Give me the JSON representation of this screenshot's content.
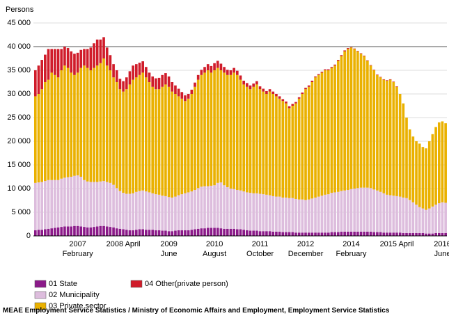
{
  "chart_data": {
    "type": "stacked_bar",
    "y_label": "Persons",
    "source": "MEAE Employment Service Statistics / Ministry of Economic Affairs and Employment, Employment Service Statistics",
    "categories": [
      null,
      null,
      null,
      null,
      null,
      null,
      null,
      null,
      null,
      null,
      null,
      null,
      null,
      "2007\nFebruary",
      null,
      null,
      null,
      null,
      null,
      null,
      null,
      null,
      null,
      null,
      null,
      null,
      null,
      "2008 April",
      null,
      null,
      null,
      null,
      null,
      null,
      null,
      null,
      null,
      null,
      null,
      null,
      null,
      "2009\nJune",
      null,
      null,
      null,
      null,
      null,
      null,
      null,
      null,
      null,
      null,
      null,
      null,
      null,
      "2010\nAugust",
      null,
      null,
      null,
      null,
      null,
      null,
      null,
      null,
      null,
      null,
      null,
      null,
      null,
      "2011\nOctober",
      null,
      null,
      null,
      null,
      null,
      null,
      null,
      null,
      null,
      null,
      null,
      null,
      null,
      "2012\nDecember",
      null,
      null,
      null,
      null,
      null,
      null,
      null,
      null,
      null,
      null,
      null,
      null,
      null,
      "2014\nFebruary",
      null,
      null,
      null,
      null,
      null,
      null,
      null,
      null,
      null,
      null,
      null,
      null,
      null,
      "2015 April",
      null,
      null,
      null,
      null,
      null,
      null,
      null,
      null,
      null,
      null,
      null,
      null,
      null,
      "2016\nJune",
      null
    ],
    "series": [
      {
        "name": "01 State",
        "color": "#8b1a89",
        "values": [
          1200,
          1300,
          1300,
          1400,
          1500,
          1600,
          1700,
          1800,
          1900,
          2000,
          2000,
          2000,
          2100,
          2100,
          2000,
          1900,
          1800,
          1800,
          1900,
          2000,
          2100,
          2100,
          2000,
          1900,
          1800,
          1600,
          1500,
          1400,
          1300,
          1200,
          1200,
          1300,
          1400,
          1400,
          1300,
          1300,
          1300,
          1200,
          1200,
          1100,
          1100,
          1000,
          1000,
          1100,
          1200,
          1200,
          1200,
          1200,
          1300,
          1400,
          1500,
          1600,
          1600,
          1700,
          1700,
          1700,
          1700,
          1600,
          1500,
          1500,
          1500,
          1500,
          1400,
          1400,
          1300,
          1200,
          1100,
          1100,
          1100,
          1000,
          1000,
          1000,
          1000,
          900,
          900,
          900,
          800,
          800,
          800,
          800,
          700,
          700,
          700,
          700,
          700,
          700,
          700,
          700,
          700,
          700,
          700,
          800,
          800,
          800,
          900,
          900,
          900,
          900,
          900,
          900,
          900,
          900,
          900,
          900,
          800,
          800,
          800,
          700,
          700,
          700,
          700,
          700,
          700,
          600,
          600,
          600,
          600,
          600,
          600,
          600,
          500,
          500,
          500,
          600,
          600,
          600,
          600
        ]
      },
      {
        "name": "02 Municipality",
        "color": "#ddbddd",
        "values": [
          10000,
          10000,
          10100,
          10200,
          10300,
          10200,
          10100,
          10000,
          10200,
          10300,
          10400,
          10500,
          10600,
          10700,
          10500,
          9900,
          9700,
          9600,
          9500,
          9400,
          9400,
          9500,
          9400,
          9300,
          9000,
          8500,
          8000,
          7700,
          7600,
          7700,
          7800,
          8000,
          8100,
          8200,
          8100,
          7900,
          7700,
          7600,
          7500,
          7400,
          7300,
          7200,
          7100,
          7200,
          7400,
          7600,
          7800,
          8000,
          8100,
          8300,
          8600,
          8800,
          8900,
          8800,
          8900,
          9000,
          9500,
          9700,
          9200,
          8800,
          8500,
          8400,
          8300,
          8200,
          8100,
          8000,
          8000,
          7900,
          7900,
          7900,
          7800,
          7700,
          7600,
          7500,
          7400,
          7400,
          7300,
          7300,
          7200,
          7200,
          7100,
          7000,
          7000,
          6900,
          7000,
          7200,
          7400,
          7600,
          7800,
          8000,
          8100,
          8300,
          8400,
          8500,
          8600,
          8700,
          8800,
          9000,
          9100,
          9200,
          9300,
          9300,
          9300,
          9200,
          9000,
          8800,
          8500,
          8300,
          8000,
          7900,
          7800,
          7700,
          7600,
          7500,
          7400,
          7000,
          6500,
          6000,
          5500,
          5200,
          5000,
          5300,
          5700,
          6000,
          6300,
          6500,
          6400
        ]
      },
      {
        "name": "03 Private sector",
        "color": "#eab100",
        "values": [
          18300,
          18700,
          19600,
          20900,
          21200,
          22700,
          22200,
          21700,
          22900,
          23700,
          23100,
          22000,
          21300,
          21700,
          23000,
          24200,
          24000,
          23600,
          24100,
          24600,
          25000,
          25900,
          24600,
          23800,
          22700,
          22400,
          21500,
          21400,
          22100,
          23100,
          24000,
          24200,
          24500,
          24900,
          24100,
          23300,
          22500,
          22200,
          22300,
          23000,
          23600,
          23300,
          22400,
          21700,
          20900,
          20200,
          19500,
          19800,
          20600,
          21800,
          22900,
          23600,
          24000,
          24500,
          23900,
          24300,
          24300,
          23700,
          23800,
          23700,
          24000,
          24600,
          24300,
          23400,
          22600,
          22300,
          21900,
          22500,
          23000,
          22100,
          21700,
          21300,
          21900,
          21600,
          21200,
          20700,
          20400,
          19900,
          19000,
          19500,
          20200,
          21300,
          22300,
          23400,
          23800,
          24600,
          25400,
          25700,
          26000,
          26300,
          26200,
          26400,
          26800,
          27700,
          28500,
          29400,
          29800,
          29900,
          29500,
          28900,
          28300,
          27800,
          26800,
          25900,
          25200,
          24400,
          24200,
          24000,
          24100,
          24400,
          24000,
          23100,
          21700,
          19900,
          17000,
          14900,
          13900,
          13400,
          13400,
          13000,
          13000,
          14200,
          15300,
          16400,
          17100,
          17100,
          16800
        ]
      },
      {
        "name": "04 Other(private person)",
        "color": "#d01c2a",
        "values": [
          5500,
          6000,
          6200,
          5800,
          6500,
          5000,
          5500,
          6000,
          4500,
          4000,
          4200,
          4500,
          4500,
          4200,
          3800,
          3500,
          4000,
          4800,
          5200,
          5500,
          5000,
          4500,
          3800,
          3200,
          2800,
          2500,
          2200,
          2200,
          2500,
          2800,
          3000,
          2800,
          2600,
          2400,
          2200,
          2000,
          2200,
          2300,
          2400,
          2500,
          2400,
          2200,
          2000,
          1800,
          1600,
          1400,
          1200,
          1000,
          900,
          900,
          1000,
          1100,
          1200,
          1300,
          1400,
          1500,
          1500,
          1400,
          1200,
          1100,
          1000,
          1000,
          900,
          900,
          800,
          800,
          800,
          700,
          700,
          600,
          600,
          600,
          500,
          500,
          500,
          500,
          400,
          400,
          400,
          400,
          300,
          300,
          300,
          300,
          300,
          300,
          200,
          200,
          200,
          200,
          200,
          200,
          200,
          200,
          200,
          200,
          200,
          100,
          100,
          100,
          100,
          100,
          100,
          100,
          100,
          100,
          100,
          100,
          100,
          100,
          100,
          100,
          0,
          0,
          0,
          0,
          0,
          0,
          0,
          0,
          0,
          0,
          0,
          0,
          0,
          0,
          0
        ]
      }
    ],
    "ylim": [
      0,
      45000
    ],
    "yticks": [
      0,
      {
        "value": 5000,
        "label": "5 000"
      },
      {
        "value": 10000,
        "label": "10 000"
      },
      {
        "value": 15000,
        "label": "15 000"
      },
      {
        "value": 20000,
        "label": "20 000"
      },
      {
        "value": 25000,
        "label": "25 000"
      },
      {
        "value": 30000,
        "label": "30 000"
      },
      {
        "value": 35000,
        "label": "35 000"
      },
      {
        "value": 40000,
        "label": "40 000"
      },
      {
        "value": 45000,
        "label": "45 000"
      }
    ],
    "grid": true
  }
}
